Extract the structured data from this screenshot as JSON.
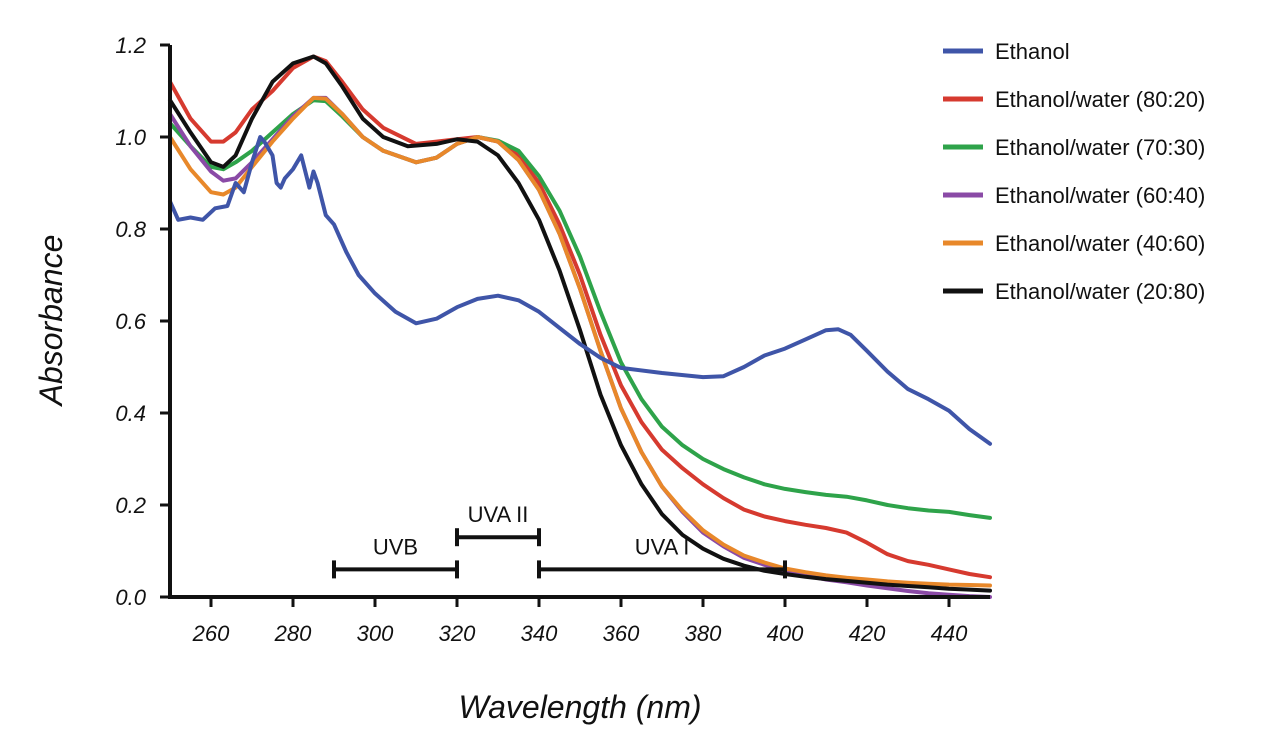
{
  "chart_data": {
    "type": "line",
    "title": "",
    "xlabel": "Wavelength (nm)",
    "ylabel": "Absorbance",
    "xlim": [
      250,
      450
    ],
    "ylim": [
      0.0,
      1.2
    ],
    "x_ticks": [
      260,
      280,
      300,
      320,
      340,
      360,
      380,
      400,
      420,
      440
    ],
    "y_ticks": [
      {
        "value": 0.0,
        "label": "0.0"
      },
      {
        "value": 0.2,
        "label": "0.2"
      },
      {
        "value": 0.4,
        "label": "0.4"
      },
      {
        "value": 0.6,
        "label": "0.6"
      },
      {
        "value": 0.8,
        "label": "0.8"
      },
      {
        "value": 1.0,
        "label": "1.0"
      },
      {
        "value": 1.2,
        "label": "1.2"
      }
    ],
    "grid": false,
    "legend_position": "top-right",
    "series": [
      {
        "name": "Ethanol",
        "color": "#3f55a8",
        "points": [
          [
            250,
            0.86
          ],
          [
            252,
            0.82
          ],
          [
            255,
            0.825
          ],
          [
            258,
            0.82
          ],
          [
            261,
            0.845
          ],
          [
            264,
            0.85
          ],
          [
            266,
            0.9
          ],
          [
            268,
            0.88
          ],
          [
            270,
            0.945
          ],
          [
            272,
            1.0
          ],
          [
            273,
            0.99
          ],
          [
            275,
            0.96
          ],
          [
            276,
            0.9
          ],
          [
            277,
            0.89
          ],
          [
            278,
            0.91
          ],
          [
            280,
            0.93
          ],
          [
            282,
            0.96
          ],
          [
            284,
            0.89
          ],
          [
            285,
            0.925
          ],
          [
            286,
            0.9
          ],
          [
            288,
            0.83
          ],
          [
            290,
            0.81
          ],
          [
            293,
            0.75
          ],
          [
            296,
            0.7
          ],
          [
            300,
            0.66
          ],
          [
            305,
            0.62
          ],
          [
            310,
            0.595
          ],
          [
            315,
            0.605
          ],
          [
            320,
            0.63
          ],
          [
            325,
            0.648
          ],
          [
            330,
            0.655
          ],
          [
            335,
            0.645
          ],
          [
            340,
            0.62
          ],
          [
            345,
            0.585
          ],
          [
            350,
            0.55
          ],
          [
            355,
            0.52
          ],
          [
            360,
            0.498
          ],
          [
            370,
            0.487
          ],
          [
            380,
            0.478
          ],
          [
            385,
            0.48
          ],
          [
            390,
            0.5
          ],
          [
            395,
            0.525
          ],
          [
            400,
            0.54
          ],
          [
            405,
            0.56
          ],
          [
            410,
            0.58
          ],
          [
            413,
            0.582
          ],
          [
            416,
            0.57
          ],
          [
            420,
            0.535
          ],
          [
            425,
            0.49
          ],
          [
            430,
            0.452
          ],
          [
            435,
            0.43
          ],
          [
            440,
            0.405
          ],
          [
            445,
            0.365
          ],
          [
            450,
            0.333
          ]
        ]
      },
      {
        "name": "Ethanol/water (80:20)",
        "color": "#d63a2f",
        "points": [
          [
            250,
            1.12
          ],
          [
            255,
            1.04
          ],
          [
            260,
            0.99
          ],
          [
            263,
            0.99
          ],
          [
            266,
            1.01
          ],
          [
            270,
            1.06
          ],
          [
            275,
            1.1
          ],
          [
            280,
            1.15
          ],
          [
            285,
            1.175
          ],
          [
            288,
            1.165
          ],
          [
            292,
            1.12
          ],
          [
            297,
            1.06
          ],
          [
            302,
            1.02
          ],
          [
            310,
            0.985
          ],
          [
            315,
            0.99
          ],
          [
            320,
            0.995
          ],
          [
            325,
            1.0
          ],
          [
            330,
            0.99
          ],
          [
            335,
            0.96
          ],
          [
            340,
            0.9
          ],
          [
            345,
            0.81
          ],
          [
            350,
            0.7
          ],
          [
            355,
            0.57
          ],
          [
            360,
            0.46
          ],
          [
            365,
            0.38
          ],
          [
            370,
            0.32
          ],
          [
            375,
            0.28
          ],
          [
            380,
            0.245
          ],
          [
            385,
            0.215
          ],
          [
            390,
            0.19
          ],
          [
            395,
            0.175
          ],
          [
            400,
            0.165
          ],
          [
            405,
            0.157
          ],
          [
            410,
            0.15
          ],
          [
            415,
            0.14
          ],
          [
            420,
            0.118
          ],
          [
            425,
            0.093
          ],
          [
            430,
            0.078
          ],
          [
            435,
            0.07
          ],
          [
            440,
            0.06
          ],
          [
            445,
            0.05
          ],
          [
            450,
            0.043
          ]
        ]
      },
      {
        "name": "Ethanol/water (70:30)",
        "color": "#2ea34a",
        "points": [
          [
            250,
            1.03
          ],
          [
            255,
            0.98
          ],
          [
            260,
            0.935
          ],
          [
            263,
            0.93
          ],
          [
            266,
            0.945
          ],
          [
            270,
            0.97
          ],
          [
            275,
            1.01
          ],
          [
            280,
            1.05
          ],
          [
            285,
            1.08
          ],
          [
            288,
            1.078
          ],
          [
            292,
            1.045
          ],
          [
            297,
            1.0
          ],
          [
            302,
            0.97
          ],
          [
            310,
            0.945
          ],
          [
            315,
            0.955
          ],
          [
            320,
            0.985
          ],
          [
            325,
            1.0
          ],
          [
            330,
            0.992
          ],
          [
            335,
            0.97
          ],
          [
            340,
            0.915
          ],
          [
            345,
            0.84
          ],
          [
            350,
            0.74
          ],
          [
            355,
            0.62
          ],
          [
            360,
            0.51
          ],
          [
            365,
            0.43
          ],
          [
            370,
            0.37
          ],
          [
            375,
            0.33
          ],
          [
            380,
            0.3
          ],
          [
            385,
            0.278
          ],
          [
            390,
            0.26
          ],
          [
            395,
            0.245
          ],
          [
            400,
            0.235
          ],
          [
            405,
            0.228
          ],
          [
            410,
            0.222
          ],
          [
            415,
            0.218
          ],
          [
            420,
            0.21
          ],
          [
            425,
            0.2
          ],
          [
            430,
            0.193
          ],
          [
            435,
            0.188
          ],
          [
            440,
            0.185
          ],
          [
            445,
            0.178
          ],
          [
            450,
            0.172
          ]
        ]
      },
      {
        "name": "Ethanol/water (60:40)",
        "color": "#8a4aa6",
        "points": [
          [
            250,
            1.05
          ],
          [
            255,
            0.98
          ],
          [
            260,
            0.925
          ],
          [
            263,
            0.905
          ],
          [
            266,
            0.91
          ],
          [
            270,
            0.945
          ],
          [
            275,
            0.995
          ],
          [
            280,
            1.045
          ],
          [
            285,
            1.085
          ],
          [
            288,
            1.085
          ],
          [
            292,
            1.05
          ],
          [
            297,
            1.0
          ],
          [
            302,
            0.97
          ],
          [
            310,
            0.945
          ],
          [
            315,
            0.955
          ],
          [
            320,
            0.985
          ],
          [
            325,
            1.0
          ],
          [
            330,
            0.99
          ],
          [
            335,
            0.95
          ],
          [
            340,
            0.885
          ],
          [
            345,
            0.79
          ],
          [
            350,
            0.67
          ],
          [
            355,
            0.535
          ],
          [
            360,
            0.41
          ],
          [
            365,
            0.315
          ],
          [
            370,
            0.24
          ],
          [
            375,
            0.185
          ],
          [
            380,
            0.14
          ],
          [
            385,
            0.11
          ],
          [
            390,
            0.085
          ],
          [
            395,
            0.07
          ],
          [
            400,
            0.057
          ],
          [
            405,
            0.047
          ],
          [
            410,
            0.038
          ],
          [
            415,
            0.032
          ],
          [
            420,
            0.025
          ],
          [
            425,
            0.019
          ],
          [
            430,
            0.013
          ],
          [
            435,
            0.008
          ],
          [
            440,
            0.005
          ],
          [
            445,
            0.002
          ],
          [
            450,
            0.0
          ]
        ]
      },
      {
        "name": "Ethanol/water (40:60)",
        "color": "#e8882a",
        "points": [
          [
            250,
            1.0
          ],
          [
            255,
            0.93
          ],
          [
            260,
            0.88
          ],
          [
            263,
            0.875
          ],
          [
            266,
            0.89
          ],
          [
            270,
            0.935
          ],
          [
            275,
            0.99
          ],
          [
            280,
            1.04
          ],
          [
            285,
            1.085
          ],
          [
            288,
            1.083
          ],
          [
            292,
            1.05
          ],
          [
            297,
            1.0
          ],
          [
            302,
            0.97
          ],
          [
            310,
            0.945
          ],
          [
            315,
            0.955
          ],
          [
            320,
            0.985
          ],
          [
            325,
            1.0
          ],
          [
            330,
            0.99
          ],
          [
            335,
            0.95
          ],
          [
            340,
            0.885
          ],
          [
            345,
            0.79
          ],
          [
            350,
            0.67
          ],
          [
            355,
            0.535
          ],
          [
            360,
            0.41
          ],
          [
            365,
            0.315
          ],
          [
            370,
            0.24
          ],
          [
            375,
            0.188
          ],
          [
            380,
            0.145
          ],
          [
            385,
            0.114
          ],
          [
            390,
            0.09
          ],
          [
            395,
            0.075
          ],
          [
            400,
            0.062
          ],
          [
            405,
            0.054
          ],
          [
            410,
            0.047
          ],
          [
            415,
            0.042
          ],
          [
            420,
            0.038
          ],
          [
            425,
            0.034
          ],
          [
            430,
            0.031
          ],
          [
            435,
            0.029
          ],
          [
            440,
            0.027
          ],
          [
            445,
            0.026
          ],
          [
            450,
            0.025
          ]
        ]
      },
      {
        "name": "Ethanol/water (20:80)",
        "color": "#111111",
        "points": [
          [
            250,
            1.08
          ],
          [
            255,
            1.01
          ],
          [
            260,
            0.945
          ],
          [
            263,
            0.935
          ],
          [
            266,
            0.96
          ],
          [
            270,
            1.04
          ],
          [
            275,
            1.12
          ],
          [
            280,
            1.16
          ],
          [
            285,
            1.175
          ],
          [
            288,
            1.16
          ],
          [
            292,
            1.11
          ],
          [
            297,
            1.04
          ],
          [
            302,
            1.0
          ],
          [
            308,
            0.98
          ],
          [
            315,
            0.985
          ],
          [
            320,
            0.995
          ],
          [
            325,
            0.99
          ],
          [
            330,
            0.96
          ],
          [
            335,
            0.9
          ],
          [
            340,
            0.82
          ],
          [
            345,
            0.71
          ],
          [
            350,
            0.58
          ],
          [
            355,
            0.44
          ],
          [
            360,
            0.33
          ],
          [
            365,
            0.245
          ],
          [
            370,
            0.18
          ],
          [
            375,
            0.135
          ],
          [
            380,
            0.105
          ],
          [
            385,
            0.083
          ],
          [
            390,
            0.068
          ],
          [
            395,
            0.057
          ],
          [
            400,
            0.05
          ],
          [
            405,
            0.044
          ],
          [
            410,
            0.039
          ],
          [
            415,
            0.035
          ],
          [
            420,
            0.031
          ],
          [
            425,
            0.027
          ],
          [
            430,
            0.024
          ],
          [
            435,
            0.021
          ],
          [
            440,
            0.018
          ],
          [
            445,
            0.016
          ],
          [
            450,
            0.014
          ]
        ]
      }
    ],
    "annotations": [
      {
        "label": "UVB",
        "x_start": 290,
        "x_end": 320,
        "y": 0.06
      },
      {
        "label": "UVA II",
        "x_start": 320,
        "x_end": 340,
        "y": 0.13
      },
      {
        "label": "UVA I",
        "x_start": 340,
        "x_end": 400,
        "y": 0.06
      }
    ]
  }
}
